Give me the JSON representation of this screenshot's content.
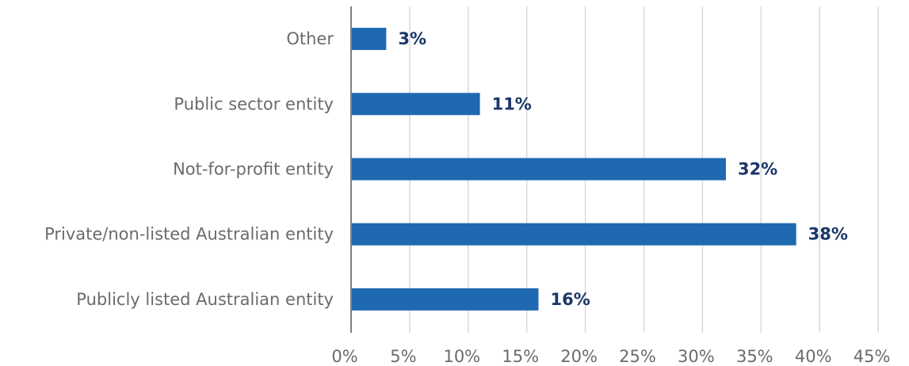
{
  "chart_data": {
    "type": "bar",
    "orientation": "horizontal",
    "categories": [
      "Other",
      "Public sector entity",
      "Not-for-profit entity",
      "Private/non-listed Australian entity",
      "Publicly listed Australian entity"
    ],
    "values": [
      3,
      11,
      32,
      38,
      16
    ],
    "value_labels": [
      "3%",
      "11%",
      "32%",
      "38%",
      "16%"
    ],
    "x_ticks": [
      "0%",
      "5%",
      "10%",
      "15%",
      "20%",
      "25%",
      "30%",
      "35%",
      "40%",
      "45%"
    ],
    "xlim": [
      0,
      45
    ],
    "grid": true,
    "title": "",
    "xlabel": "",
    "ylabel": "",
    "colors": {
      "bar": "#1f69b1",
      "data_label": "#1a3768",
      "category_label": "#6b6b6b",
      "grid": "#d9d9d9",
      "axis": "#7f7f7f"
    }
  }
}
